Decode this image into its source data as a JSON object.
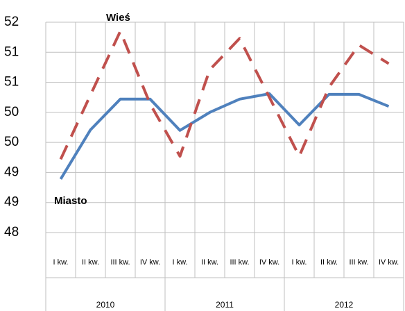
{
  "chart_data": {
    "type": "line",
    "categories": [
      "I kw.",
      "II kw.",
      "III kw.",
      "IV kw.",
      "I kw.",
      "II kw.",
      "III kw.",
      "IV kw.",
      "I kw.",
      "II kw.",
      "III kw.",
      "IV kw."
    ],
    "category_groups": [
      "2010",
      "2011",
      "2012"
    ],
    "series": [
      {
        "name": "Miasto",
        "color": "#4f81bd",
        "dash": false,
        "values": [
          48.89,
          49.71,
          50.22,
          50.22,
          49.7,
          50.0,
          50.22,
          50.31,
          49.79,
          50.3,
          50.3,
          50.1
        ]
      },
      {
        "name": "Wieś",
        "color": "#c0504d",
        "dash": true,
        "values": [
          49.22,
          50.29,
          51.35,
          50.14,
          49.27,
          50.71,
          51.23,
          50.25,
          49.27,
          50.42,
          51.12,
          50.81
        ]
      }
    ],
    "ylim": [
      48,
      51.5
    ],
    "yticks": [
      48,
      {
        "value": 48.5,
        "label": "49"
      },
      49,
      {
        "value": 49.5,
        "label": "50"
      },
      50,
      {
        "value": 50.5,
        "label": "51"
      },
      51,
      {
        "value": 51.5,
        "label": "52"
      }
    ],
    "grid": true
  }
}
